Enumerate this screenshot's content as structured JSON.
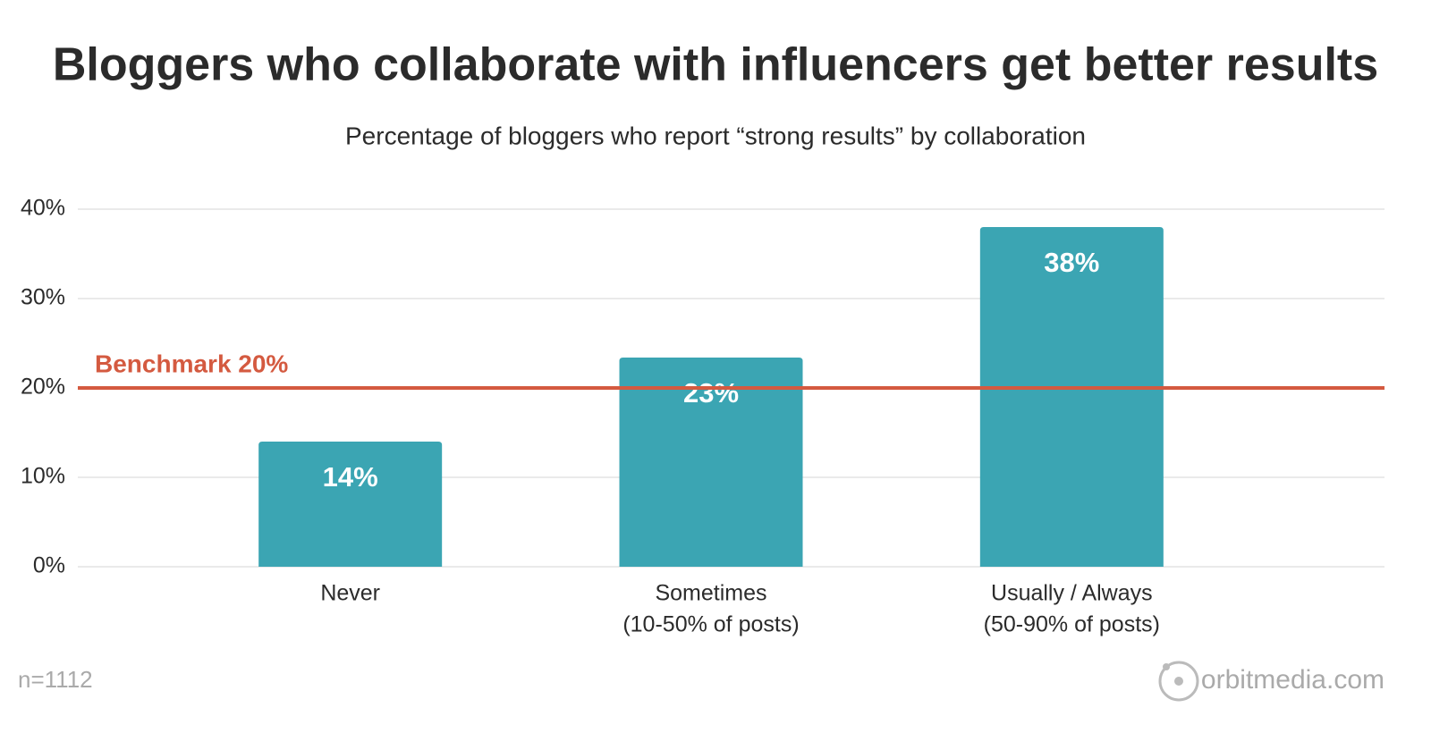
{
  "chart_data": {
    "type": "bar",
    "title": "Bloggers who collaborate with influencers get better results",
    "subtitle": "Percentage of bloggers who report “strong results” by collaboration",
    "categories": [
      [
        "Never"
      ],
      [
        "Sometimes",
        "(10-50% of posts)"
      ],
      [
        "Usually / Always",
        "(50-90% of posts)"
      ]
    ],
    "values": [
      14,
      23.4,
      38
    ],
    "value_labels": [
      "14%",
      "23%",
      "38%"
    ],
    "color": "#3ba5b3",
    "ylim": [
      0,
      40
    ],
    "yticks": [
      {
        "value": 0,
        "label": "0%"
      },
      {
        "value": 10,
        "label": "10%"
      },
      {
        "value": 20,
        "label": "20%"
      },
      {
        "value": 30,
        "label": "30%"
      },
      {
        "value": 40,
        "label": "40%"
      }
    ],
    "grid": true,
    "benchmark": {
      "value": 20,
      "label": "Benchmark 20%",
      "color": "#d45a40"
    },
    "note": "n=1112",
    "source": "orbitmedia.com"
  }
}
